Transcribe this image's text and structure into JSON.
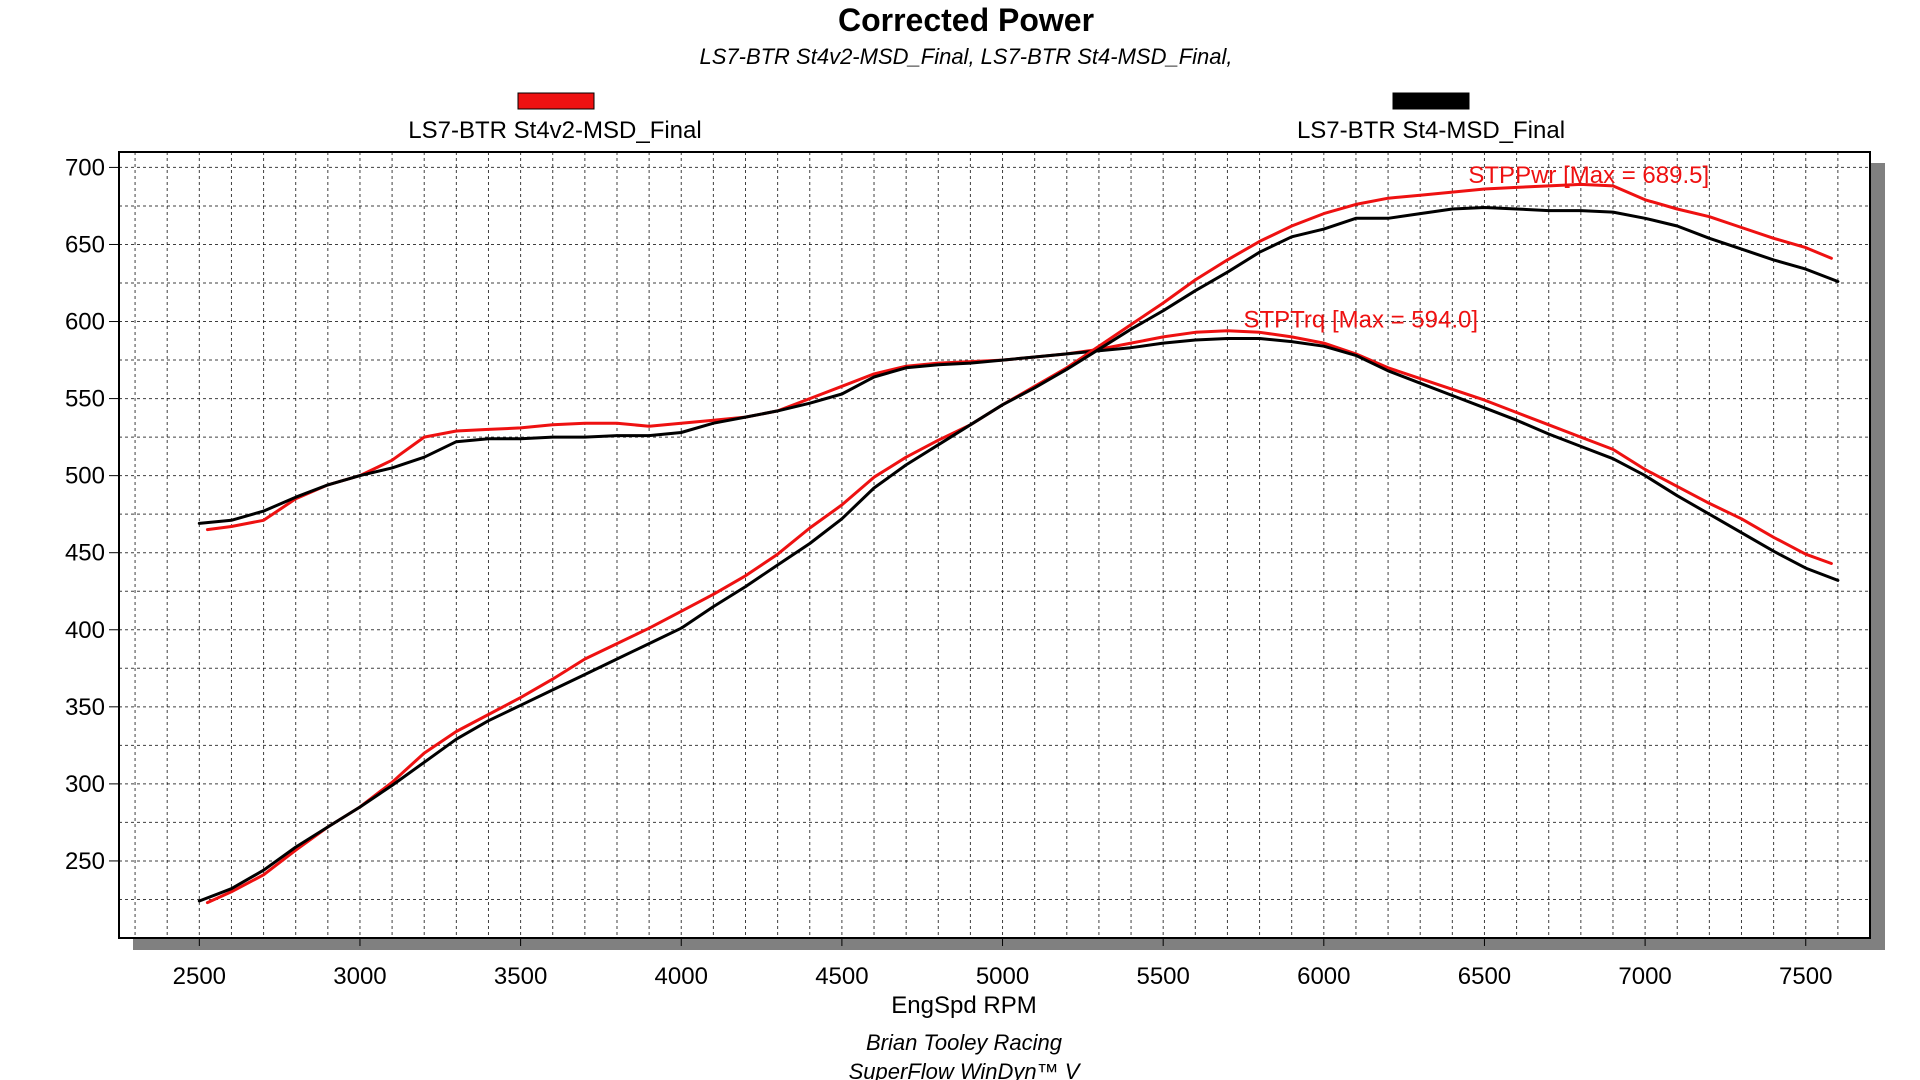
{
  "colors": {
    "series_red": "#ee1111",
    "series_black": "#000000",
    "shadow": "#808080",
    "annotation": "#ee1111"
  },
  "chart_data": {
    "type": "line",
    "title": "Corrected Power",
    "subtitle": "LS7-BTR St4v2-MSD_Final, LS7-BTR St4-MSD_Final,",
    "xlabel": "EngSpd RPM",
    "ylabel": "",
    "xlim": [
      2250,
      7700
    ],
    "ylim": [
      200,
      710
    ],
    "x_ticks": [
      2500,
      3000,
      3500,
      4000,
      4500,
      5000,
      5500,
      6000,
      6500,
      7000,
      7500
    ],
    "y_ticks": [
      250,
      300,
      350,
      400,
      450,
      500,
      550,
      600,
      650,
      700
    ],
    "grid": true,
    "legend_position": "top",
    "legend": [
      "LS7-BTR St4v2-MSD_Final",
      "LS7-BTR St4-MSD_Final"
    ],
    "annotations": [
      {
        "text": "STPPwr [Max = 689.5]",
        "x": 6450,
        "y": 690
      },
      {
        "text": "STPTrq [Max = 594.0]",
        "x": 5750,
        "y": 596
      }
    ],
    "series": [
      {
        "name": "LS7-BTR St4v2-MSD_Final",
        "color": "series_red",
        "curve": "STPTrq",
        "x": [
          2525,
          2600,
          2700,
          2800,
          2900,
          3000,
          3100,
          3200,
          3300,
          3400,
          3500,
          3600,
          3700,
          3800,
          3900,
          4000,
          4100,
          4200,
          4300,
          4400,
          4500,
          4600,
          4700,
          4800,
          4900,
          5000,
          5100,
          5200,
          5300,
          5400,
          5500,
          5600,
          5700,
          5800,
          5900,
          6000,
          6100,
          6200,
          6300,
          6400,
          6500,
          6600,
          6700,
          6800,
          6900,
          7000,
          7100,
          7200,
          7300,
          7400,
          7500,
          7580
        ],
        "values": [
          465,
          467,
          471,
          485,
          494,
          500,
          510,
          525,
          529,
          530,
          531,
          533,
          534,
          534,
          532,
          534,
          536,
          538,
          542,
          550,
          558,
          566,
          571,
          573,
          574,
          575,
          577,
          579,
          582,
          586,
          590,
          593,
          594,
          593,
          590,
          586,
          579,
          570,
          563,
          556,
          549,
          541,
          533,
          525,
          517,
          504,
          493,
          482,
          472,
          460,
          449,
          443
        ]
      },
      {
        "name": "LS7-BTR St4-MSD_Final",
        "color": "series_black",
        "curve": "STPTrq",
        "x": [
          2500,
          2600,
          2700,
          2800,
          2900,
          3000,
          3100,
          3200,
          3300,
          3400,
          3500,
          3600,
          3700,
          3800,
          3900,
          4000,
          4100,
          4200,
          4300,
          4400,
          4500,
          4600,
          4700,
          4800,
          4900,
          5000,
          5100,
          5200,
          5300,
          5400,
          5500,
          5600,
          5700,
          5800,
          5900,
          6000,
          6100,
          6200,
          6300,
          6400,
          6500,
          6600,
          6700,
          6800,
          6900,
          7000,
          7100,
          7200,
          7300,
          7400,
          7500,
          7600
        ],
        "values": [
          469,
          471,
          477,
          486,
          494,
          500,
          505,
          512,
          522,
          524,
          524,
          525,
          525,
          526,
          526,
          528,
          534,
          538,
          542,
          547,
          553,
          564,
          570,
          572,
          573,
          575,
          577,
          579,
          581,
          583,
          586,
          588,
          589,
          589,
          587,
          584,
          578,
          568,
          560,
          552,
          544,
          536,
          527,
          519,
          511,
          500,
          487,
          475,
          463,
          451,
          440,
          432
        ]
      },
      {
        "name": "LS7-BTR St4v2-MSD_Final",
        "color": "series_red",
        "curve": "STPPwr",
        "x": [
          2525,
          2600,
          2700,
          2800,
          2900,
          3000,
          3100,
          3200,
          3300,
          3400,
          3500,
          3600,
          3700,
          3800,
          3900,
          4000,
          4100,
          4200,
          4300,
          4400,
          4500,
          4600,
          4700,
          4800,
          4900,
          5000,
          5100,
          5200,
          5300,
          5400,
          5500,
          5600,
          5700,
          5800,
          5900,
          6000,
          6100,
          6200,
          6300,
          6400,
          6500,
          6600,
          6700,
          6800,
          6900,
          7000,
          7100,
          7200,
          7300,
          7400,
          7500,
          7580
        ],
        "values": [
          223,
          230,
          241,
          257,
          272,
          285,
          301,
          320,
          334,
          345,
          356,
          368,
          381,
          391,
          401,
          412,
          423,
          435,
          449,
          466,
          481,
          499,
          512,
          523,
          533,
          546,
          558,
          570,
          584,
          598,
          612,
          627,
          640,
          652,
          662,
          670,
          676,
          680,
          682,
          684,
          686,
          687,
          688,
          689,
          688,
          679,
          673,
          668,
          661,
          654,
          648,
          641
        ]
      },
      {
        "name": "LS7-BTR St4-MSD_Final",
        "color": "series_black",
        "curve": "STPPwr",
        "x": [
          2500,
          2600,
          2700,
          2800,
          2900,
          3000,
          3100,
          3200,
          3300,
          3400,
          3500,
          3600,
          3700,
          3800,
          3900,
          4000,
          4100,
          4200,
          4300,
          4400,
          4500,
          4600,
          4700,
          4800,
          4900,
          5000,
          5100,
          5200,
          5300,
          5400,
          5500,
          5600,
          5700,
          5800,
          5900,
          6000,
          6100,
          6200,
          6300,
          6400,
          6500,
          6600,
          6700,
          6800,
          6900,
          7000,
          7100,
          7200,
          7300,
          7400,
          7500,
          7600
        ],
        "values": [
          224,
          232,
          244,
          259,
          272,
          285,
          299,
          314,
          329,
          341,
          351,
          361,
          371,
          381,
          391,
          401,
          415,
          428,
          442,
          456,
          472,
          492,
          507,
          520,
          533,
          546,
          557,
          569,
          582,
          595,
          607,
          620,
          632,
          645,
          655,
          660,
          667,
          667,
          670,
          673,
          674,
          673,
          672,
          672,
          671,
          667,
          662,
          654,
          647,
          640,
          634,
          626
        ]
      }
    ]
  },
  "footer": {
    "line1": "Brian Tooley Racing",
    "line2": "SuperFlow WinDyn™ V"
  }
}
